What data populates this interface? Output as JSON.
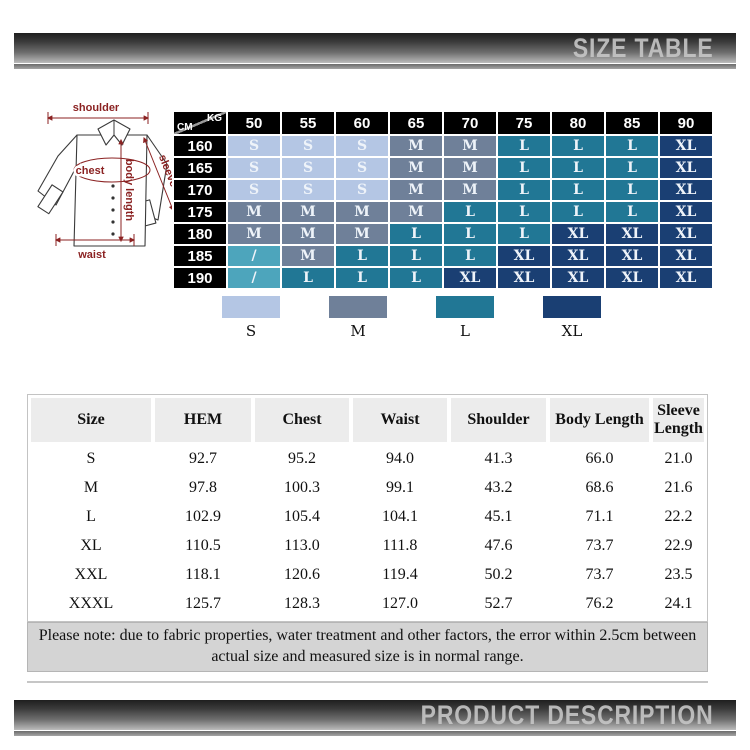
{
  "header_bar": {
    "title": "SIZE TABLE"
  },
  "footer_bar": {
    "title": "PRODUCT DESCRIPTION"
  },
  "colors": {
    "s": "#b4c6e4",
    "m": "#6f8099",
    "l": "#217795",
    "xl": "#1a3f73",
    "slash": "#4da5bc",
    "label_red": "#8b2222"
  },
  "diagram": {
    "labels": {
      "shoulder": "shoulder",
      "chest": "chest",
      "sleeve": "sleeve",
      "body_length": "body length",
      "waist": "waist"
    }
  },
  "size_matrix": {
    "corner": {
      "kg": "KG",
      "cm": "CM"
    },
    "weight_headers": [
      "50",
      "55",
      "60",
      "65",
      "70",
      "75",
      "80",
      "85",
      "90"
    ],
    "height_rows": [
      {
        "height": "160",
        "cells": [
          "S",
          "S",
          "S",
          "M",
          "M",
          "L",
          "L",
          "L",
          "XL"
        ]
      },
      {
        "height": "165",
        "cells": [
          "S",
          "S",
          "S",
          "M",
          "M",
          "L",
          "L",
          "L",
          "XL"
        ]
      },
      {
        "height": "170",
        "cells": [
          "S",
          "S",
          "S",
          "M",
          "M",
          "L",
          "L",
          "L",
          "XL"
        ]
      },
      {
        "height": "175",
        "cells": [
          "M",
          "M",
          "M",
          "M",
          "L",
          "L",
          "L",
          "L",
          "XL"
        ]
      },
      {
        "height": "180",
        "cells": [
          "M",
          "M",
          "M",
          "L",
          "L",
          "L",
          "XL",
          "XL",
          "XL"
        ]
      },
      {
        "height": "185",
        "cells": [
          "/",
          "M",
          "L",
          "L",
          "L",
          "XL",
          "XL",
          "XL",
          "XL"
        ]
      },
      {
        "height": "190",
        "cells": [
          "/",
          "L",
          "L",
          "L",
          "XL",
          "XL",
          "XL",
          "XL",
          "XL"
        ]
      }
    ]
  },
  "legend": [
    {
      "label": "S",
      "color_key": "s"
    },
    {
      "label": "M",
      "color_key": "m"
    },
    {
      "label": "L",
      "color_key": "l"
    },
    {
      "label": "XL",
      "color_key": "xl"
    }
  ],
  "measurements": {
    "columns": [
      "Size",
      "HEM",
      "Chest",
      "Waist",
      "Shoulder",
      "Body Length",
      "Sleeve Length"
    ],
    "rows": [
      [
        "S",
        "92.7",
        "95.2",
        "94.0",
        "41.3",
        "66.0",
        "21.0"
      ],
      [
        "M",
        "97.8",
        "100.3",
        "99.1",
        "43.2",
        "68.6",
        "21.6"
      ],
      [
        "L",
        "102.9",
        "105.4",
        "104.1",
        "45.1",
        "71.1",
        "22.2"
      ],
      [
        "XL",
        "110.5",
        "113.0",
        "111.8",
        "47.6",
        "73.7",
        "22.9"
      ],
      [
        "XXL",
        "118.1",
        "120.6",
        "119.4",
        "50.2",
        "73.7",
        "23.5"
      ],
      [
        "XXXL",
        "125.7",
        "128.3",
        "127.0",
        "52.7",
        "76.2",
        "24.1"
      ]
    ]
  },
  "note": "Please note: due to fabric properties, water treatment and other factors, the error within 2.5cm between actual size and measured size is in normal range."
}
